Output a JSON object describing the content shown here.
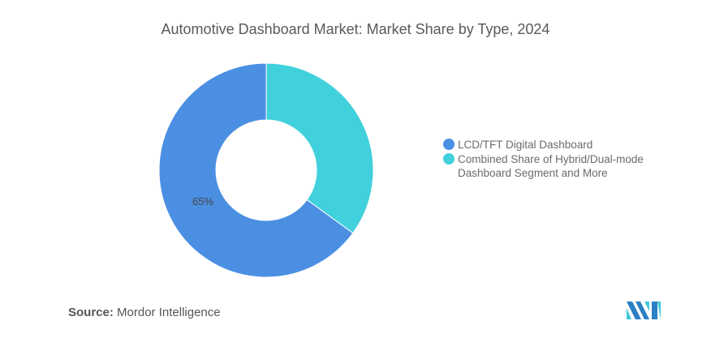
{
  "chart_data": {
    "type": "pie",
    "variant": "donut",
    "title": "Automotive Dashboard Market: Market Share by Type, 2024",
    "categories": [
      "LCD/TFT Digital Dashboard",
      "Combined Share of Hybrid/Dual-mode Dashboard Segment and More"
    ],
    "values": [
      65,
      35
    ],
    "unit": "%",
    "data_labels": [
      "65%",
      ""
    ],
    "colors": [
      "#4b8fe3",
      "#41d1dc"
    ],
    "legend_placement": "right"
  },
  "source": {
    "label": "Source:",
    "value": "Mordor Intelligence"
  },
  "logo": {
    "text": "Mordor Intelligence"
  }
}
